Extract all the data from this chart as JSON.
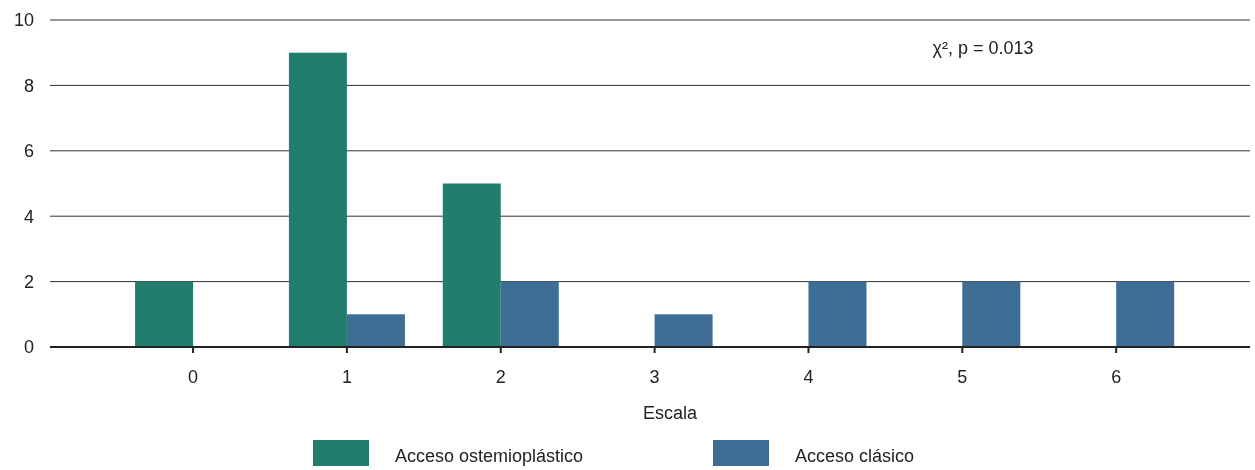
{
  "chart_data": {
    "type": "bar",
    "xlabel": "Escala",
    "categories": [
      "0",
      "1",
      "2",
      "3",
      "4",
      "5",
      "6"
    ],
    "series": [
      {
        "name": "Acceso ostemioplástico",
        "color": "#217e6f",
        "values": [
          2,
          9,
          5,
          0,
          0,
          0,
          0
        ]
      },
      {
        "name": "Acceso clásico",
        "color": "#3e6e95",
        "values": [
          0,
          1,
          2,
          1,
          2,
          2,
          2
        ]
      }
    ],
    "ylim": [
      0,
      10
    ],
    "yticks": [
      0,
      2,
      4,
      6,
      8,
      10
    ],
    "grid": "y",
    "legend": "bottom",
    "annotations": [
      "χ², p = 0.013"
    ]
  }
}
